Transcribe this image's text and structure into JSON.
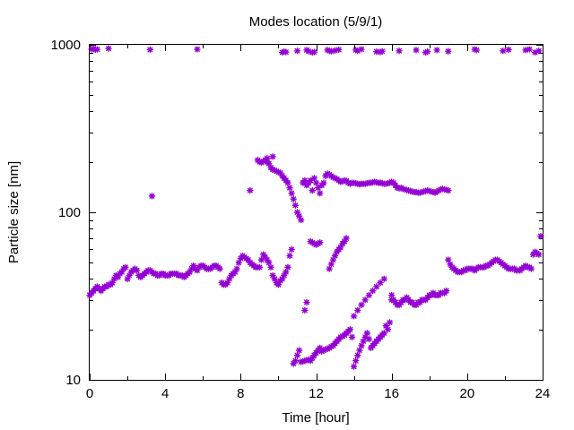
{
  "chart_data": {
    "type": "scatter",
    "title": "Modes location (5/9/1)",
    "xlabel": "Time [hour]",
    "ylabel": "Particle size [nm]",
    "xlim": [
      0,
      24
    ],
    "ylim": [
      10,
      1000
    ],
    "yscale": "log",
    "x_ticks": [
      "0",
      "4",
      "8",
      "12",
      "16",
      "20",
      "24"
    ],
    "y_ticks": [
      "10",
      "100",
      "1000"
    ],
    "grid": false,
    "legend": "none",
    "marker_color": "#9400d3",
    "series": [
      {
        "x": [
          0.0,
          0.1,
          0.2,
          0.3,
          0.4,
          0.5,
          0.6,
          0.7,
          0.8,
          0.9,
          1.0,
          1.1,
          1.2,
          1.3,
          1.4,
          1.5,
          1.6,
          1.7,
          1.8,
          1.9,
          2.0,
          2.1,
          2.2,
          2.3,
          2.4,
          2.5,
          2.6,
          2.7,
          2.8,
          2.9,
          3.0,
          3.1,
          3.2,
          3.3,
          3.4,
          3.5,
          3.6,
          3.7,
          3.8,
          3.9,
          4.0,
          4.1,
          4.2,
          4.3,
          4.4,
          4.5,
          4.6,
          4.7,
          4.8,
          4.9,
          5.0,
          5.1,
          5.2,
          5.3,
          5.4,
          5.5,
          5.6,
          5.7,
          5.8,
          5.9,
          6.0,
          6.1,
          6.2,
          6.3,
          6.4,
          6.5,
          6.6,
          6.7,
          6.8,
          6.9,
          7.0,
          7.1,
          7.2,
          7.3,
          7.4,
          7.5,
          7.6,
          7.7,
          7.8,
          7.9,
          8.0,
          8.1,
          8.2,
          8.3,
          8.4,
          8.5,
          8.6,
          8.7,
          8.8,
          8.9,
          9.0,
          9.1,
          9.2,
          9.3,
          9.4,
          9.5,
          9.6,
          9.7,
          9.8,
          9.9,
          10.0,
          10.1,
          10.2,
          10.3,
          10.4,
          10.5,
          10.6,
          10.7
        ],
        "y": [
          32,
          33,
          34,
          35,
          36,
          35,
          34,
          35,
          36,
          36,
          37,
          37,
          38,
          40,
          42,
          41,
          43,
          44,
          46,
          47,
          40,
          42,
          44,
          45,
          46,
          45,
          42,
          41,
          42,
          43,
          44,
          45,
          45,
          44,
          43,
          43,
          42,
          42,
          43,
          43,
          42,
          42,
          42,
          43,
          43,
          43,
          43,
          42,
          42,
          42,
          41,
          42,
          43,
          44,
          46,
          48,
          46,
          45,
          47,
          48,
          48,
          47,
          46,
          46,
          46,
          47,
          48,
          48,
          47,
          46,
          38,
          37,
          37,
          38,
          40,
          42,
          43,
          44,
          46,
          50,
          53,
          55,
          54,
          53,
          52,
          50,
          49,
          48,
          47,
          47,
          47,
          52,
          56,
          54,
          52,
          50,
          47,
          42,
          40,
          38,
          37,
          39,
          40,
          42,
          44,
          47,
          55,
          60
        ]
      },
      {
        "x": [
          16.0,
          16.1,
          16.2,
          16.3,
          16.4,
          16.5,
          16.6,
          16.7,
          16.8,
          16.9,
          17.0,
          17.1,
          17.2,
          17.3,
          17.4,
          17.5,
          17.6,
          17.7,
          17.8,
          17.9,
          18.0,
          18.1,
          18.2,
          18.3,
          18.4,
          18.5,
          18.6,
          18.7,
          18.8,
          18.9,
          19.0,
          19.1,
          19.2,
          19.3,
          19.4,
          19.5,
          19.6,
          19.7,
          19.8,
          19.9,
          20.0,
          20.1,
          20.2,
          20.3,
          20.4,
          20.5,
          20.6,
          20.7,
          20.8,
          20.9,
          21.0,
          21.1,
          21.2,
          21.3,
          21.4,
          21.5,
          21.6,
          21.7,
          21.8,
          21.9,
          22.0,
          22.1,
          22.2,
          22.3,
          22.4,
          22.5,
          22.6,
          22.7,
          22.8,
          22.9,
          23.0,
          23.1,
          23.2,
          23.3,
          23.4,
          23.5,
          23.6,
          23.7,
          23.8,
          23.9
        ],
        "y": [
          32,
          30,
          29,
          28,
          28,
          29,
          30,
          30,
          31,
          30,
          29,
          29,
          28,
          28,
          29,
          29,
          30,
          30,
          30,
          31,
          32,
          32,
          33,
          32,
          32,
          32,
          33,
          33,
          33,
          34,
          52,
          49,
          47,
          46,
          45,
          44,
          44,
          44,
          45,
          45,
          46,
          46,
          46,
          46,
          45,
          46,
          47,
          47,
          47,
          47,
          48,
          48,
          49,
          50,
          51,
          52,
          52,
          51,
          50,
          49,
          48,
          47,
          46,
          46,
          46,
          46,
          45,
          45,
          45,
          46,
          47,
          48,
          47,
          47,
          46,
          56,
          58,
          57,
          56,
          72
        ]
      },
      {
        "x": [
          8.9,
          9.0,
          9.1,
          9.2,
          9.3,
          9.4,
          9.5,
          9.6,
          9.7,
          9.8,
          9.9,
          10.0,
          10.1,
          10.2,
          10.3,
          10.4,
          10.5,
          10.6,
          10.7,
          10.8,
          10.9,
          11.0,
          11.1,
          11.2,
          11.3,
          11.4,
          11.5,
          11.6,
          11.7,
          11.8,
          11.9,
          12.0,
          12.1,
          12.2,
          12.3,
          12.4,
          12.5,
          12.6,
          12.7,
          12.8,
          12.9,
          13.0,
          13.1,
          13.2,
          13.3,
          13.4,
          13.5,
          13.6,
          13.7,
          13.8,
          13.9,
          14.0,
          14.1,
          14.2,
          14.3,
          14.4,
          14.5,
          14.6,
          14.7,
          14.8,
          14.9,
          15.0,
          15.1,
          15.2,
          15.3,
          15.4,
          15.5,
          15.6,
          15.7,
          15.8,
          15.9,
          16.0,
          16.1,
          16.2,
          16.3,
          16.4,
          16.5,
          16.6,
          16.7,
          16.8,
          16.9,
          17.0,
          17.1,
          17.2,
          17.3,
          17.4,
          17.5,
          17.6,
          17.7,
          17.8,
          17.9,
          18.0,
          18.1,
          18.2,
          18.3,
          18.4,
          18.5,
          18.6,
          18.7,
          18.8,
          18.9,
          19.0
        ],
        "y": [
          205,
          200,
          198,
          202,
          205,
          200,
          195,
          185,
          180,
          178,
          176,
          174,
          172,
          165,
          160,
          155,
          150,
          140,
          130,
          120,
          110,
          100,
          95,
          90,
          150,
          155,
          145,
          150,
          155,
          135,
          160,
          150,
          140,
          130,
          145,
          150,
          165,
          170,
          168,
          165,
          162,
          160,
          158,
          155,
          152,
          153,
          155,
          154,
          150,
          148,
          150,
          150,
          149,
          148,
          147,
          148,
          148,
          148,
          149,
          150,
          150,
          151,
          152,
          151,
          150,
          150,
          149,
          148,
          148,
          149,
          150,
          152,
          150,
          145,
          140,
          139,
          140,
          138,
          137,
          136,
          135,
          134,
          133,
          132,
          132,
          131,
          131,
          132,
          133,
          134,
          135,
          134,
          133,
          132,
          131,
          133,
          135,
          137,
          138,
          137,
          136,
          135
        ]
      },
      {
        "x": [
          10.8,
          10.9,
          11.0,
          11.1,
          11.2,
          11.3,
          11.4,
          11.5,
          11.6,
          11.7,
          11.8,
          11.9,
          12.0,
          12.1,
          12.2,
          12.3,
          12.4,
          12.5,
          12.6,
          12.7,
          12.8,
          12.9,
          13.0,
          13.1,
          13.2,
          13.3,
          13.4,
          13.5,
          13.6,
          13.7,
          13.8,
          13.9,
          14.0,
          14.1,
          14.2,
          14.3,
          14.4,
          14.5,
          14.6,
          14.7,
          14.8,
          14.9,
          15.0,
          15.1,
          15.2,
          15.3,
          15.4,
          15.5,
          15.6,
          15.7,
          15.8,
          15.9,
          16.0
        ],
        "y": [
          12.5,
          13,
          14,
          15,
          12.8,
          12.9,
          13,
          13.1,
          13.2,
          13,
          13.5,
          14,
          14.5,
          15,
          15.5,
          14.8,
          15,
          15.2,
          15.3,
          15.5,
          15.8,
          16,
          16.5,
          17,
          17.5,
          18,
          18.2,
          18.5,
          19,
          19.5,
          20,
          18,
          12,
          13,
          14,
          15,
          16,
          17,
          18,
          19,
          17.5,
          15.5,
          16,
          16.5,
          17,
          17.5,
          18,
          18.5,
          19,
          21,
          20,
          22,
          30
        ]
      },
      {
        "x": [
          11.4,
          11.5,
          11.7,
          11.8,
          11.9,
          12.0,
          12.1,
          12.2,
          12.7,
          12.8,
          12.9,
          13.0,
          13.1,
          13.2,
          13.3,
          13.4,
          13.5,
          13.6,
          14.0,
          14.2,
          14.4,
          14.6,
          14.8,
          15.0,
          15.2,
          15.4,
          15.6
        ],
        "y": [
          26,
          29,
          67,
          66,
          65,
          64,
          65,
          66,
          46,
          49,
          52,
          55,
          58,
          60,
          62,
          65,
          67,
          70,
          24,
          26,
          28,
          30,
          32,
          34,
          36,
          38,
          40
        ]
      },
      {
        "x": [
          0.1,
          0.2,
          0.3,
          0.4,
          1.0,
          3.2,
          5.7,
          10.2,
          10.3,
          10.4,
          11.0,
          11.5,
          11.6,
          11.8,
          11.9,
          12.6,
          12.7,
          12.8,
          13.0,
          13.2,
          14.1,
          14.2,
          14.4,
          15.2,
          15.4,
          15.5,
          16.4,
          17.3,
          17.8,
          17.9,
          18.4,
          19.0,
          20.4,
          20.5,
          21.9,
          22.2,
          23.1,
          23.3,
          23.6,
          23.8
        ],
        "y": [
          940,
          950,
          935,
          940,
          950,
          935,
          940,
          900,
          910,
          905,
          920,
          930,
          915,
          900,
          905,
          930,
          920,
          915,
          925,
          935,
          930,
          920,
          940,
          910,
          905,
          915,
          920,
          930,
          900,
          910,
          930,
          915,
          940,
          930,
          920,
          935,
          930,
          940,
          900,
          920
        ]
      },
      {
        "x": [
          3.3,
          8.5,
          9.4,
          9.7
        ],
        "y": [
          125,
          135,
          210,
          215
        ]
      }
    ]
  }
}
